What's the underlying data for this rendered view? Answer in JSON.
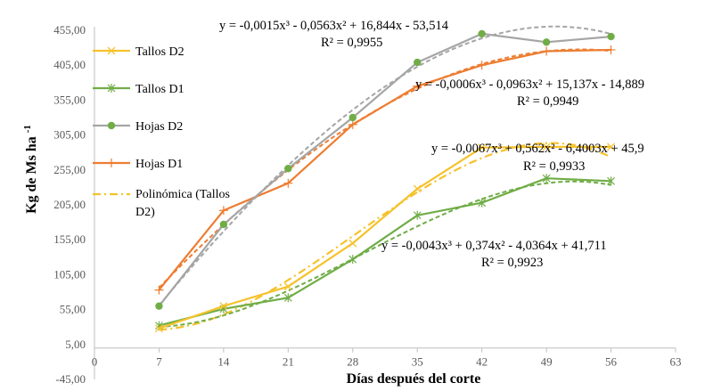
{
  "chart_data": {
    "type": "line",
    "xlabel": "Días después del corte",
    "ylabel": "Kg de Ms ha-1",
    "ylabel_main": "Kg de Ms ha",
    "ylabel_sup": "-1",
    "xlim": [
      0,
      63
    ],
    "ylim": [
      -45,
      455
    ],
    "x_ticks": [
      "0",
      "7",
      "14",
      "21",
      "28",
      "35",
      "42",
      "49",
      "56",
      "63"
    ],
    "x_tick_values": [
      0,
      7,
      14,
      21,
      28,
      35,
      42,
      49,
      56,
      63
    ],
    "y_ticks": [
      "-45,00",
      "5,00",
      "55,00",
      "105,00",
      "155,00",
      "205,00",
      "255,00",
      "305,00",
      "355,00",
      "405,00",
      "455,00"
    ],
    "y_tick_values": [
      -45,
      5,
      55,
      105,
      155,
      205,
      255,
      305,
      355,
      405,
      455
    ],
    "x": [
      7,
      14,
      21,
      28,
      35,
      42,
      49,
      56
    ],
    "series": [
      {
        "name": "Tallos D2",
        "marker": "x",
        "color": "#F5C22C",
        "values": [
          28,
          60,
          88,
          150,
          228,
          287,
          288,
          288
        ]
      },
      {
        "name": "Tallos D1",
        "marker": "asterisk",
        "color": "#70AD47",
        "values": [
          32,
          56,
          72,
          127,
          190,
          208,
          243,
          239
        ]
      },
      {
        "name": "Hojas D2",
        "marker": "dot",
        "color": "#A5A5A5",
        "marker_color": "#70AD47",
        "values": [
          60,
          177,
          257,
          330,
          409,
          450,
          438,
          446
        ]
      },
      {
        "name": "Hojas D1",
        "marker": "plus",
        "color": "#ED7D31",
        "values": [
          83,
          197,
          236,
          320,
          375,
          405,
          425,
          427
        ]
      }
    ],
    "trendlines": [
      {
        "of": "Hojas D2",
        "color": "#A5A5A5",
        "coef": [
          -0.0015,
          -0.0563,
          16.844,
          -53.514
        ]
      },
      {
        "of": "Hojas D1",
        "color": "#ED7D31",
        "coef": [
          -0.0006,
          -0.0963,
          15.137,
          -14.889
        ]
      },
      {
        "of": "Tallos D2",
        "color": "#F5C22C",
        "coef": [
          -0.0067,
          0.562,
          -6.4003,
          45.9
        ]
      },
      {
        "of": "Tallos D1",
        "color": "#70AD47",
        "coef": [
          -0.0043,
          0.374,
          -4.0364,
          41.711
        ]
      }
    ],
    "legend_extra": "Polinómica (Tallos D2)",
    "legend_extra_lines": [
      "Polinómica (Tallos",
      "D2)"
    ],
    "legend_placement": "top-left",
    "annotations": [
      {
        "eq": "y = -0,0015x³ - 0,0563x² + 16,844x - 53,514",
        "r2": "R² = 0,9955"
      },
      {
        "eq": "y = -0,0006x³ - 0,0963x² + 15,137x - 14,889",
        "r2": "R² = 0,9949"
      },
      {
        "eq": "y = -0,0067x³ + 0,562x² - 6,4003x + 45,9",
        "r2": "R² = 0,9933"
      },
      {
        "eq": "y = -0,0043x³ + 0,374x² - 4,0364x + 41,711",
        "r2": "R² = 0,9923"
      }
    ],
    "grid": false
  }
}
